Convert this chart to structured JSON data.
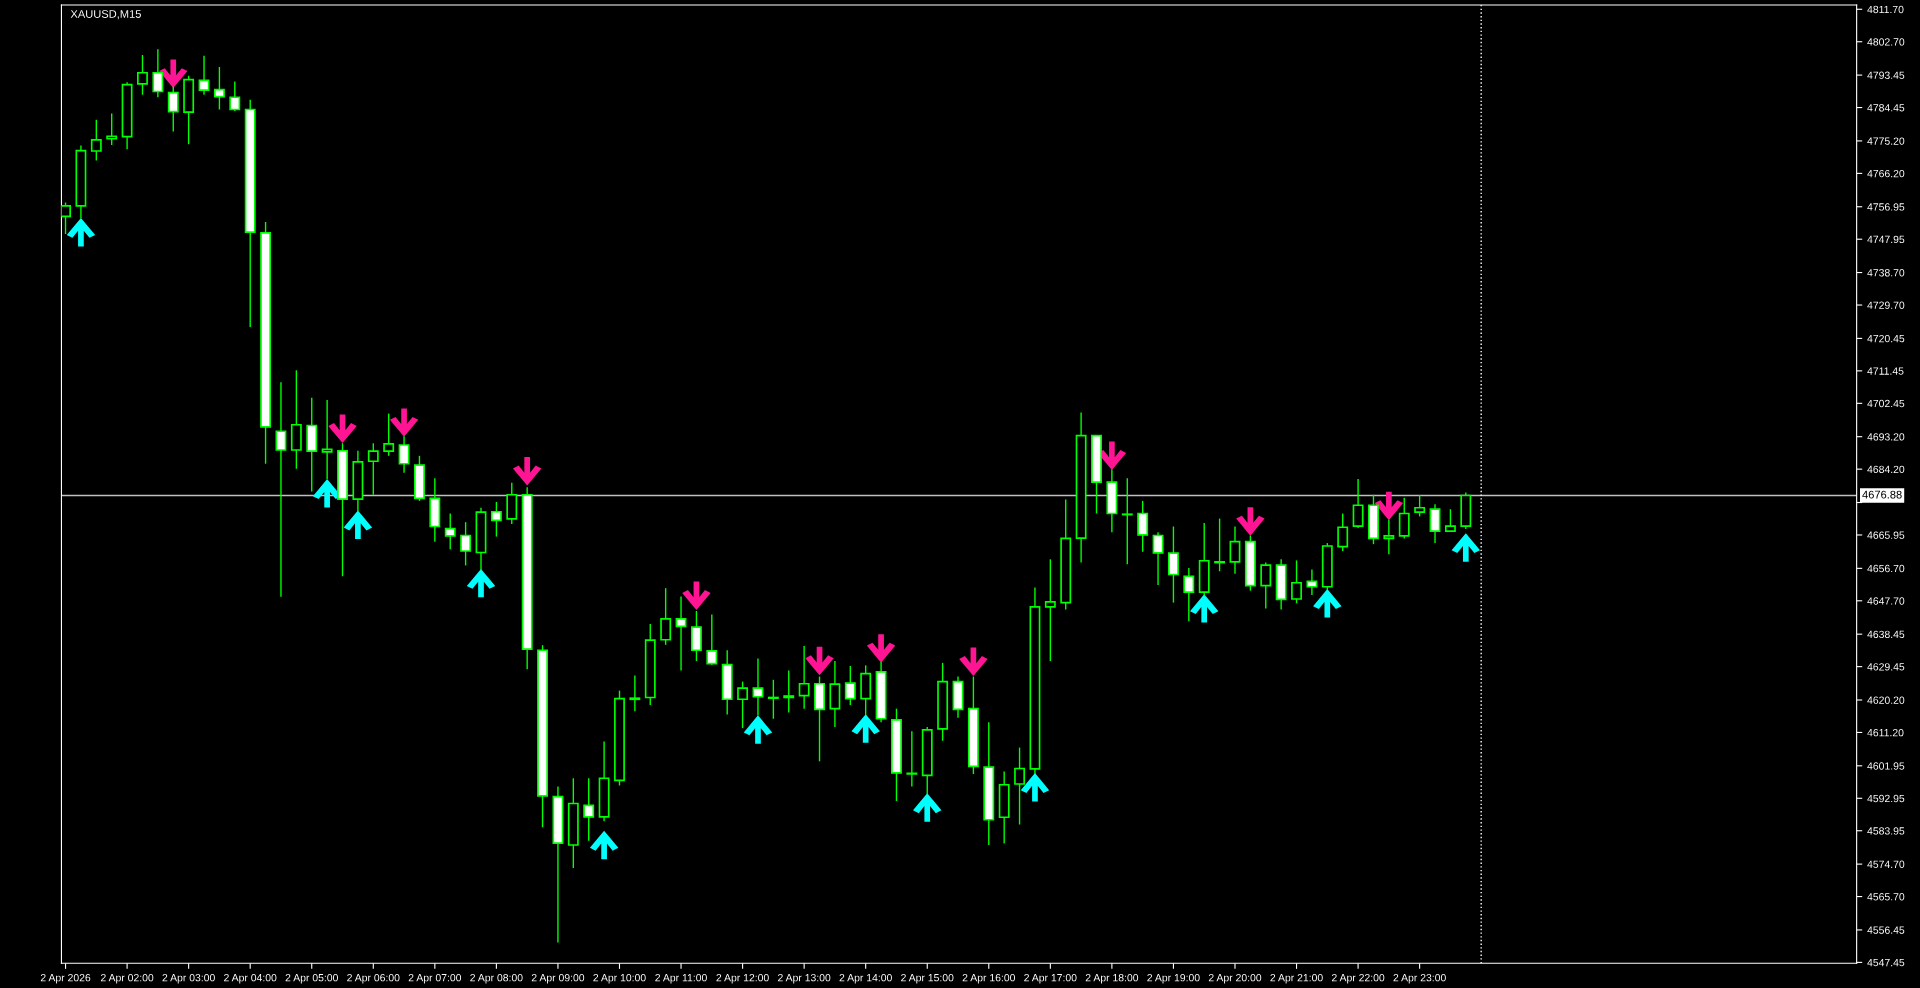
{
  "chart_data": {
    "type": "candlestick",
    "title": "XAUUSD,M15",
    "color": "#00ff00",
    "x": [
      "2026-04-02T01:00",
      "2026-04-02T01:15",
      "2026-04-02T01:30",
      "2026-04-02T01:45",
      "2026-04-02T02:00",
      "2026-04-02T02:15",
      "2026-04-02T02:30",
      "2026-04-02T02:45",
      "2026-04-02T03:00",
      "2026-04-02T03:15",
      "2026-04-02T03:30",
      "2026-04-02T03:45",
      "2026-04-02T04:00",
      "2026-04-02T04:15",
      "2026-04-02T04:30",
      "2026-04-02T04:45",
      "2026-04-02T05:00",
      "2026-04-02T05:15",
      "2026-04-02T05:30",
      "2026-04-02T05:45",
      "2026-04-02T06:00",
      "2026-04-02T06:15",
      "2026-04-02T06:30",
      "2026-04-02T06:45",
      "2026-04-02T07:00",
      "2026-04-02T07:15",
      "2026-04-02T07:30",
      "2026-04-02T07:45",
      "2026-04-02T08:00",
      "2026-04-02T08:15",
      "2026-04-02T08:30",
      "2026-04-02T08:45",
      "2026-04-02T09:00",
      "2026-04-02T09:15",
      "2026-04-02T09:30",
      "2026-04-02T09:45",
      "2026-04-02T10:00",
      "2026-04-02T10:15",
      "2026-04-02T10:30",
      "2026-04-02T10:45",
      "2026-04-02T11:00",
      "2026-04-02T11:15",
      "2026-04-02T11:30",
      "2026-04-02T11:45",
      "2026-04-02T12:00",
      "2026-04-02T12:15",
      "2026-04-02T12:30",
      "2026-04-02T12:45",
      "2026-04-02T13:00",
      "2026-04-02T13:15",
      "2026-04-02T13:30",
      "2026-04-02T13:45",
      "2026-04-02T14:00",
      "2026-04-02T14:15",
      "2026-04-02T14:30",
      "2026-04-02T14:45",
      "2026-04-02T15:00",
      "2026-04-02T15:15",
      "2026-04-02T15:30",
      "2026-04-02T15:45",
      "2026-04-02T16:00",
      "2026-04-02T16:15",
      "2026-04-02T16:30",
      "2026-04-02T16:45",
      "2026-04-02T17:00",
      "2026-04-02T17:15",
      "2026-04-02T17:30",
      "2026-04-02T17:45",
      "2026-04-02T18:00",
      "2026-04-02T18:15",
      "2026-04-02T18:30",
      "2026-04-02T18:45",
      "2026-04-02T19:00",
      "2026-04-02T19:15",
      "2026-04-02T19:30",
      "2026-04-02T19:45",
      "2026-04-02T20:00",
      "2026-04-02T20:15",
      "2026-04-02T20:30",
      "2026-04-02T20:45",
      "2026-04-02T21:00",
      "2026-04-02T21:15",
      "2026-04-02T21:30",
      "2026-04-02T21:45",
      "2026-04-02T22:00",
      "2026-04-02T22:15",
      "2026-04-02T22:30",
      "2026-04-02T22:45",
      "2026-04-02T23:00",
      "2026-04-02T23:15",
      "2026-04-02T23:30",
      "2026-04-02T23:45"
    ],
    "ohlc": [
      [
        4754.3,
        4758.1,
        4749.4,
        4757.2
      ],
      [
        4757.2,
        4773.9,
        4753.7,
        4772.5
      ],
      [
        4772.4,
        4781.1,
        4769.8,
        4775.5
      ],
      [
        4775.8,
        4782.8,
        4774.1,
        4776.5
      ],
      [
        4776.4,
        4791.5,
        4772.9,
        4790.8
      ],
      [
        4791.0,
        4799.0,
        4788.0,
        4794.1
      ],
      [
        4794.1,
        4800.6,
        4787.3,
        4788.9
      ],
      [
        4788.6,
        4790.3,
        4777.8,
        4783.3
      ],
      [
        4783.2,
        4793.3,
        4774.3,
        4792.2
      ],
      [
        4792.0,
        4798.8,
        4788.0,
        4789.3
      ],
      [
        4789.4,
        4795.7,
        4783.9,
        4787.5
      ],
      [
        4787.3,
        4791.7,
        4783.5,
        4783.9
      ],
      [
        4783.9,
        4786.6,
        4723.6,
        4749.9
      ],
      [
        4749.7,
        4752.7,
        4685.7,
        4695.9
      ],
      [
        4694.7,
        4708.3,
        4648.8,
        4689.5
      ],
      [
        4689.5,
        4711.6,
        4684.3,
        4696.5
      ],
      [
        4696.3,
        4704.0,
        4678.0,
        4689.2
      ],
      [
        4689.0,
        4703.4,
        4681.5,
        4689.7
      ],
      [
        4689.3,
        4691.4,
        4654.5,
        4675.9
      ],
      [
        4675.9,
        4689.3,
        4672.5,
        4686.2
      ],
      [
        4686.4,
        4691.4,
        4677.1,
        4689.2
      ],
      [
        4689.2,
        4699.6,
        4687.9,
        4691.2
      ],
      [
        4690.9,
        4693.3,
        4683.2,
        4685.7
      ],
      [
        4685.3,
        4687.9,
        4675.4,
        4676.1
      ],
      [
        4676.1,
        4681.7,
        4664.1,
        4668.3
      ],
      [
        4667.7,
        4671.9,
        4662.0,
        4665.7
      ],
      [
        4665.8,
        4669.5,
        4657.5,
        4661.5
      ],
      [
        4661.1,
        4673.5,
        4656.2,
        4672.3
      ],
      [
        4672.4,
        4675.1,
        4665.5,
        4670.0
      ],
      [
        4670.4,
        4680.4,
        4669.0,
        4677.1
      ],
      [
        4677.1,
        4679.2,
        4628.7,
        4634.3
      ],
      [
        4634.0,
        4635.4,
        4584.9,
        4593.6
      ],
      [
        4593.4,
        4596.2,
        4553.0,
        4580.5
      ],
      [
        4580.0,
        4598.5,
        4573.6,
        4591.5
      ],
      [
        4591.0,
        4598.5,
        4581.2,
        4587.8
      ],
      [
        4587.8,
        4608.7,
        4586.6,
        4598.5
      ],
      [
        4597.9,
        4622.8,
        4596.5,
        4620.6
      ],
      [
        4620.4,
        4627.0,
        4617.1,
        4620.7
      ],
      [
        4620.9,
        4641.3,
        4618.8,
        4636.8
      ],
      [
        4636.9,
        4651.2,
        4635.5,
        4642.7
      ],
      [
        4642.7,
        4648.9,
        4628.4,
        4640.6
      ],
      [
        4640.4,
        4644.9,
        4631.0,
        4634.0
      ],
      [
        4633.8,
        4643.9,
        4630.0,
        4630.3
      ],
      [
        4630.0,
        4634.0,
        4616.2,
        4620.4
      ],
      [
        4620.4,
        4625.3,
        4612.4,
        4623.5
      ],
      [
        4623.5,
        4631.7,
        4615.9,
        4621.1
      ],
      [
        4620.7,
        4625.8,
        4615.0,
        4620.9
      ],
      [
        4620.9,
        4628.4,
        4616.7,
        4621.3
      ],
      [
        4621.4,
        4635.2,
        4617.8,
        4624.7
      ],
      [
        4624.7,
        4626.7,
        4603.2,
        4617.6
      ],
      [
        4617.8,
        4631.0,
        4612.7,
        4624.6
      ],
      [
        4624.9,
        4629.6,
        4618.8,
        4620.6
      ],
      [
        4620.6,
        4629.8,
        4616.0,
        4627.5
      ],
      [
        4628.0,
        4630.7,
        4614.0,
        4615.0
      ],
      [
        4614.7,
        4617.8,
        4592.2,
        4600.0
      ],
      [
        4599.9,
        4611.5,
        4596.2,
        4599.7
      ],
      [
        4599.3,
        4612.7,
        4594.1,
        4611.9
      ],
      [
        4612.2,
        4630.5,
        4608.9,
        4625.3
      ],
      [
        4625.3,
        4626.7,
        4615.3,
        4617.6
      ],
      [
        4617.8,
        4626.7,
        4599.7,
        4601.8
      ],
      [
        4601.6,
        4614.0,
        4580.0,
        4587.0
      ],
      [
        4587.7,
        4600.4,
        4580.4,
        4596.7
      ],
      [
        4596.9,
        4607.0,
        4585.7,
        4601.2
      ],
      [
        4601.1,
        4651.4,
        4599.7,
        4646.0
      ],
      [
        4646.0,
        4659.2,
        4631.0,
        4647.4
      ],
      [
        4647.2,
        4675.8,
        4645.3,
        4665.0
      ],
      [
        4665.1,
        4699.9,
        4658.3,
        4693.5
      ],
      [
        4693.5,
        4693.5,
        4671.9,
        4680.6
      ],
      [
        4680.6,
        4684.1,
        4666.7,
        4671.9
      ],
      [
        4671.7,
        4681.7,
        4657.8,
        4671.6
      ],
      [
        4671.9,
        4675.4,
        4661.3,
        4666.0
      ],
      [
        4665.8,
        4666.7,
        4652.1,
        4661.0
      ],
      [
        4660.9,
        4668.3,
        4647.2,
        4655.0
      ],
      [
        4654.5,
        4656.8,
        4642.0,
        4650.1
      ],
      [
        4650.1,
        4669.3,
        4649.3,
        4658.8
      ],
      [
        4658.3,
        4670.5,
        4655.9,
        4658.5
      ],
      [
        4658.5,
        4668.3,
        4655.2,
        4664.1
      ],
      [
        4664.1,
        4665.8,
        4650.5,
        4651.9
      ],
      [
        4651.9,
        4658.3,
        4645.6,
        4657.6
      ],
      [
        4657.6,
        4659.2,
        4645.3,
        4648.1
      ],
      [
        4648.2,
        4658.9,
        4647.0,
        4652.7
      ],
      [
        4653.1,
        4656.4,
        4649.3,
        4651.6
      ],
      [
        4651.6,
        4663.7,
        4650.7,
        4662.9
      ],
      [
        4662.7,
        4671.9,
        4661.5,
        4668.1
      ],
      [
        4668.4,
        4681.5,
        4667.9,
        4674.2
      ],
      [
        4674.2,
        4677.1,
        4663.4,
        4665.0
      ],
      [
        4665.0,
        4670.2,
        4660.6,
        4665.7
      ],
      [
        4665.7,
        4676.3,
        4665.0,
        4671.9
      ],
      [
        4672.3,
        4677.0,
        4671.1,
        4673.5
      ],
      [
        4673.1,
        4674.5,
        4663.7,
        4667.0
      ],
      [
        4667.0,
        4673.1,
        4667.0,
        4668.4
      ],
      [
        4668.4,
        4677.7,
        4667.6,
        4676.9
      ]
    ],
    "colors": [
      "#000000",
      "#000000",
      "#000000",
      "#000000",
      "#000000",
      "#000000",
      "#ffffff",
      "#ffffff",
      "#000000",
      "#ffffff",
      "#ffffff",
      "#ffffff",
      "#ffffff",
      "#ffffff",
      "#ffffff",
      "#000000",
      "#ffffff",
      "#000000",
      "#ffffff",
      "#000000",
      "#000000",
      "#000000",
      "#ffffff",
      "#ffffff",
      "#ffffff",
      "#ffffff",
      "#ffffff",
      "#000000",
      "#ffffff",
      "#000000",
      "#ffffff",
      "#ffffff",
      "#ffffff",
      "#000000",
      "#ffffff",
      "#000000",
      "#000000",
      "#000000",
      "#000000",
      "#000000",
      "#ffffff",
      "#ffffff",
      "#ffffff",
      "#ffffff",
      "#000000",
      "#ffffff",
      "#000000",
      "#000000",
      "#000000",
      "#ffffff",
      "#000000",
      "#ffffff",
      "#000000",
      "#ffffff",
      "#ffffff",
      "#ffffff",
      "#000000",
      "#000000",
      "#ffffff",
      "#ffffff",
      "#ffffff",
      "#000000",
      "#000000",
      "#000000",
      "#000000",
      "#000000",
      "#000000",
      "#ffffff",
      "#ffffff",
      "#ffffff",
      "#ffffff",
      "#ffffff",
      "#ffffff",
      "#ffffff",
      "#000000",
      "#000000",
      "#000000",
      "#ffffff",
      "#000000",
      "#ffffff",
      "#000000",
      "#ffffff",
      "#000000",
      "#000000",
      "#000000",
      "#ffffff",
      "#000000",
      "#000000",
      "#000000",
      "#ffffff",
      "#000000",
      "#000000"
    ],
    "series": [
      {
        "type": "scatter",
        "color": "#00ffff",
        "x": [
          "2026-04-02T01:15",
          "2026-04-02T05:15",
          "2026-04-02T05:45",
          "2026-04-02T07:45",
          "2026-04-02T09:45",
          "2026-04-02T12:15",
          "2026-04-02T14:00",
          "2026-04-02T15:00",
          "2026-04-02T16:45",
          "2026-04-02T19:30",
          "2026-04-02T21:30",
          "2026-04-02T23:45"
        ],
        "values": [
          4749.9,
          4677.5,
          4668.8,
          4652.6,
          4580.0,
          4612.0,
          4612.3,
          4590.4,
          4596.0,
          4645.6,
          4647.0,
          4662.5
        ]
      },
      {
        "type": "scatter",
        "color": "#ff1493",
        "x": [
          "2026-04-02T02:45",
          "2026-04-02T05:30",
          "2026-04-02T06:30",
          "2026-04-02T08:30",
          "2026-04-02T11:15",
          "2026-04-02T13:15",
          "2026-04-02T14:15",
          "2026-04-02T15:45",
          "2026-04-02T18:00",
          "2026-04-02T20:15",
          "2026-04-02T22:30"
        ],
        "values": [
          4793.8,
          4695.4,
          4697.1,
          4683.6,
          4649.1,
          4631.0,
          4634.5,
          4630.8,
          4687.9,
          4669.7,
          4674.0
        ]
      }
    ],
    "xlim": [
      "2026-04-02T00:56",
      "2026-04-03T06:06"
    ],
    "ylim": [
      4547.2,
      4812.9
    ],
    "xticks": [
      {
        "value": "2026-04-02T01:00",
        "label": "2 Apr 2026"
      },
      {
        "value": "2026-04-02T02:00",
        "label": "2 Apr 02:00"
      },
      {
        "value": "2026-04-02T03:00",
        "label": "2 Apr 03:00"
      },
      {
        "value": "2026-04-02T04:00",
        "label": "2 Apr 04:00"
      },
      {
        "value": "2026-04-02T05:00",
        "label": "2 Apr 05:00"
      },
      {
        "value": "2026-04-02T06:00",
        "label": "2 Apr 06:00"
      },
      {
        "value": "2026-04-02T07:00",
        "label": "2 Apr 07:00"
      },
      {
        "value": "2026-04-02T08:00",
        "label": "2 Apr 08:00"
      },
      {
        "value": "2026-04-02T09:00",
        "label": "2 Apr 09:00"
      },
      {
        "value": "2026-04-02T10:00",
        "label": "2 Apr 10:00"
      },
      {
        "value": "2026-04-02T11:00",
        "label": "2 Apr 11:00"
      },
      {
        "value": "2026-04-02T12:00",
        "label": "2 Apr 12:00"
      },
      {
        "value": "2026-04-02T13:00",
        "label": "2 Apr 13:00"
      },
      {
        "value": "2026-04-02T14:00",
        "label": "2 Apr 14:00"
      },
      {
        "value": "2026-04-02T15:00",
        "label": "2 Apr 15:00"
      },
      {
        "value": "2026-04-02T16:00",
        "label": "2 Apr 16:00"
      },
      {
        "value": "2026-04-02T17:00",
        "label": "2 Apr 17:00"
      },
      {
        "value": "2026-04-02T18:00",
        "label": "2 Apr 18:00"
      },
      {
        "value": "2026-04-02T19:00",
        "label": "2 Apr 19:00"
      },
      {
        "value": "2026-04-02T20:00",
        "label": "2 Apr 20:00"
      },
      {
        "value": "2026-04-02T21:00",
        "label": "2 Apr 21:00"
      },
      {
        "value": "2026-04-02T22:00",
        "label": "2 Apr 22:00"
      },
      {
        "value": "2026-04-02T23:00",
        "label": "2 Apr 23:00"
      }
    ],
    "yticks": [
      {
        "value": 4811.7,
        "label": "4811.70"
      },
      {
        "value": 4802.7,
        "label": "4802.70"
      },
      {
        "value": 4793.45,
        "label": "4793.45"
      },
      {
        "value": 4784.45,
        "label": "4784.45"
      },
      {
        "value": 4775.2,
        "label": "4775.20"
      },
      {
        "value": 4766.2,
        "label": "4766.20"
      },
      {
        "value": 4756.95,
        "label": "4756.95"
      },
      {
        "value": 4747.95,
        "label": "4747.95"
      },
      {
        "value": 4738.7,
        "label": "4738.70"
      },
      {
        "value": 4729.7,
        "label": "4729.70"
      },
      {
        "value": 4720.45,
        "label": "4720.45"
      },
      {
        "value": 4711.45,
        "label": "4711.45"
      },
      {
        "value": 4702.45,
        "label": "4702.45"
      },
      {
        "value": 4693.2,
        "label": "4693.20"
      },
      {
        "value": 4684.2,
        "label": "4684.20"
      },
      {
        "value": 4674.95,
        "label": null
      },
      {
        "value": 4665.95,
        "label": "4665.95"
      },
      {
        "value": 4656.7,
        "label": "4656.70"
      },
      {
        "value": 4647.7,
        "label": "4647.70"
      },
      {
        "value": 4638.45,
        "label": "4638.45"
      },
      {
        "value": 4629.45,
        "label": "4629.45"
      },
      {
        "value": 4620.2,
        "label": "4620.20"
      },
      {
        "value": 4611.2,
        "label": "4611.20"
      },
      {
        "value": 4601.95,
        "label": "4601.95"
      },
      {
        "value": 4592.95,
        "label": "4592.95"
      },
      {
        "value": 4583.95,
        "label": "4583.95"
      },
      {
        "value": 4574.7,
        "label": "4574.70"
      },
      {
        "value": 4565.7,
        "label": "4565.70"
      },
      {
        "value": 4556.45,
        "label": "4556.45"
      },
      {
        "value": 4547.45,
        "label": "4547.45"
      }
    ],
    "ref_lines": [
      {
        "axis": "y",
        "value": 4676.88,
        "label": "4676.88",
        "color": "#c0c0c0",
        "line_style": "solid"
      },
      {
        "axis": "x",
        "value": "2026-04-03T00:00",
        "color": "#ffffff",
        "line_style": "dotted"
      }
    ],
    "grid": false,
    "legend": false
  }
}
